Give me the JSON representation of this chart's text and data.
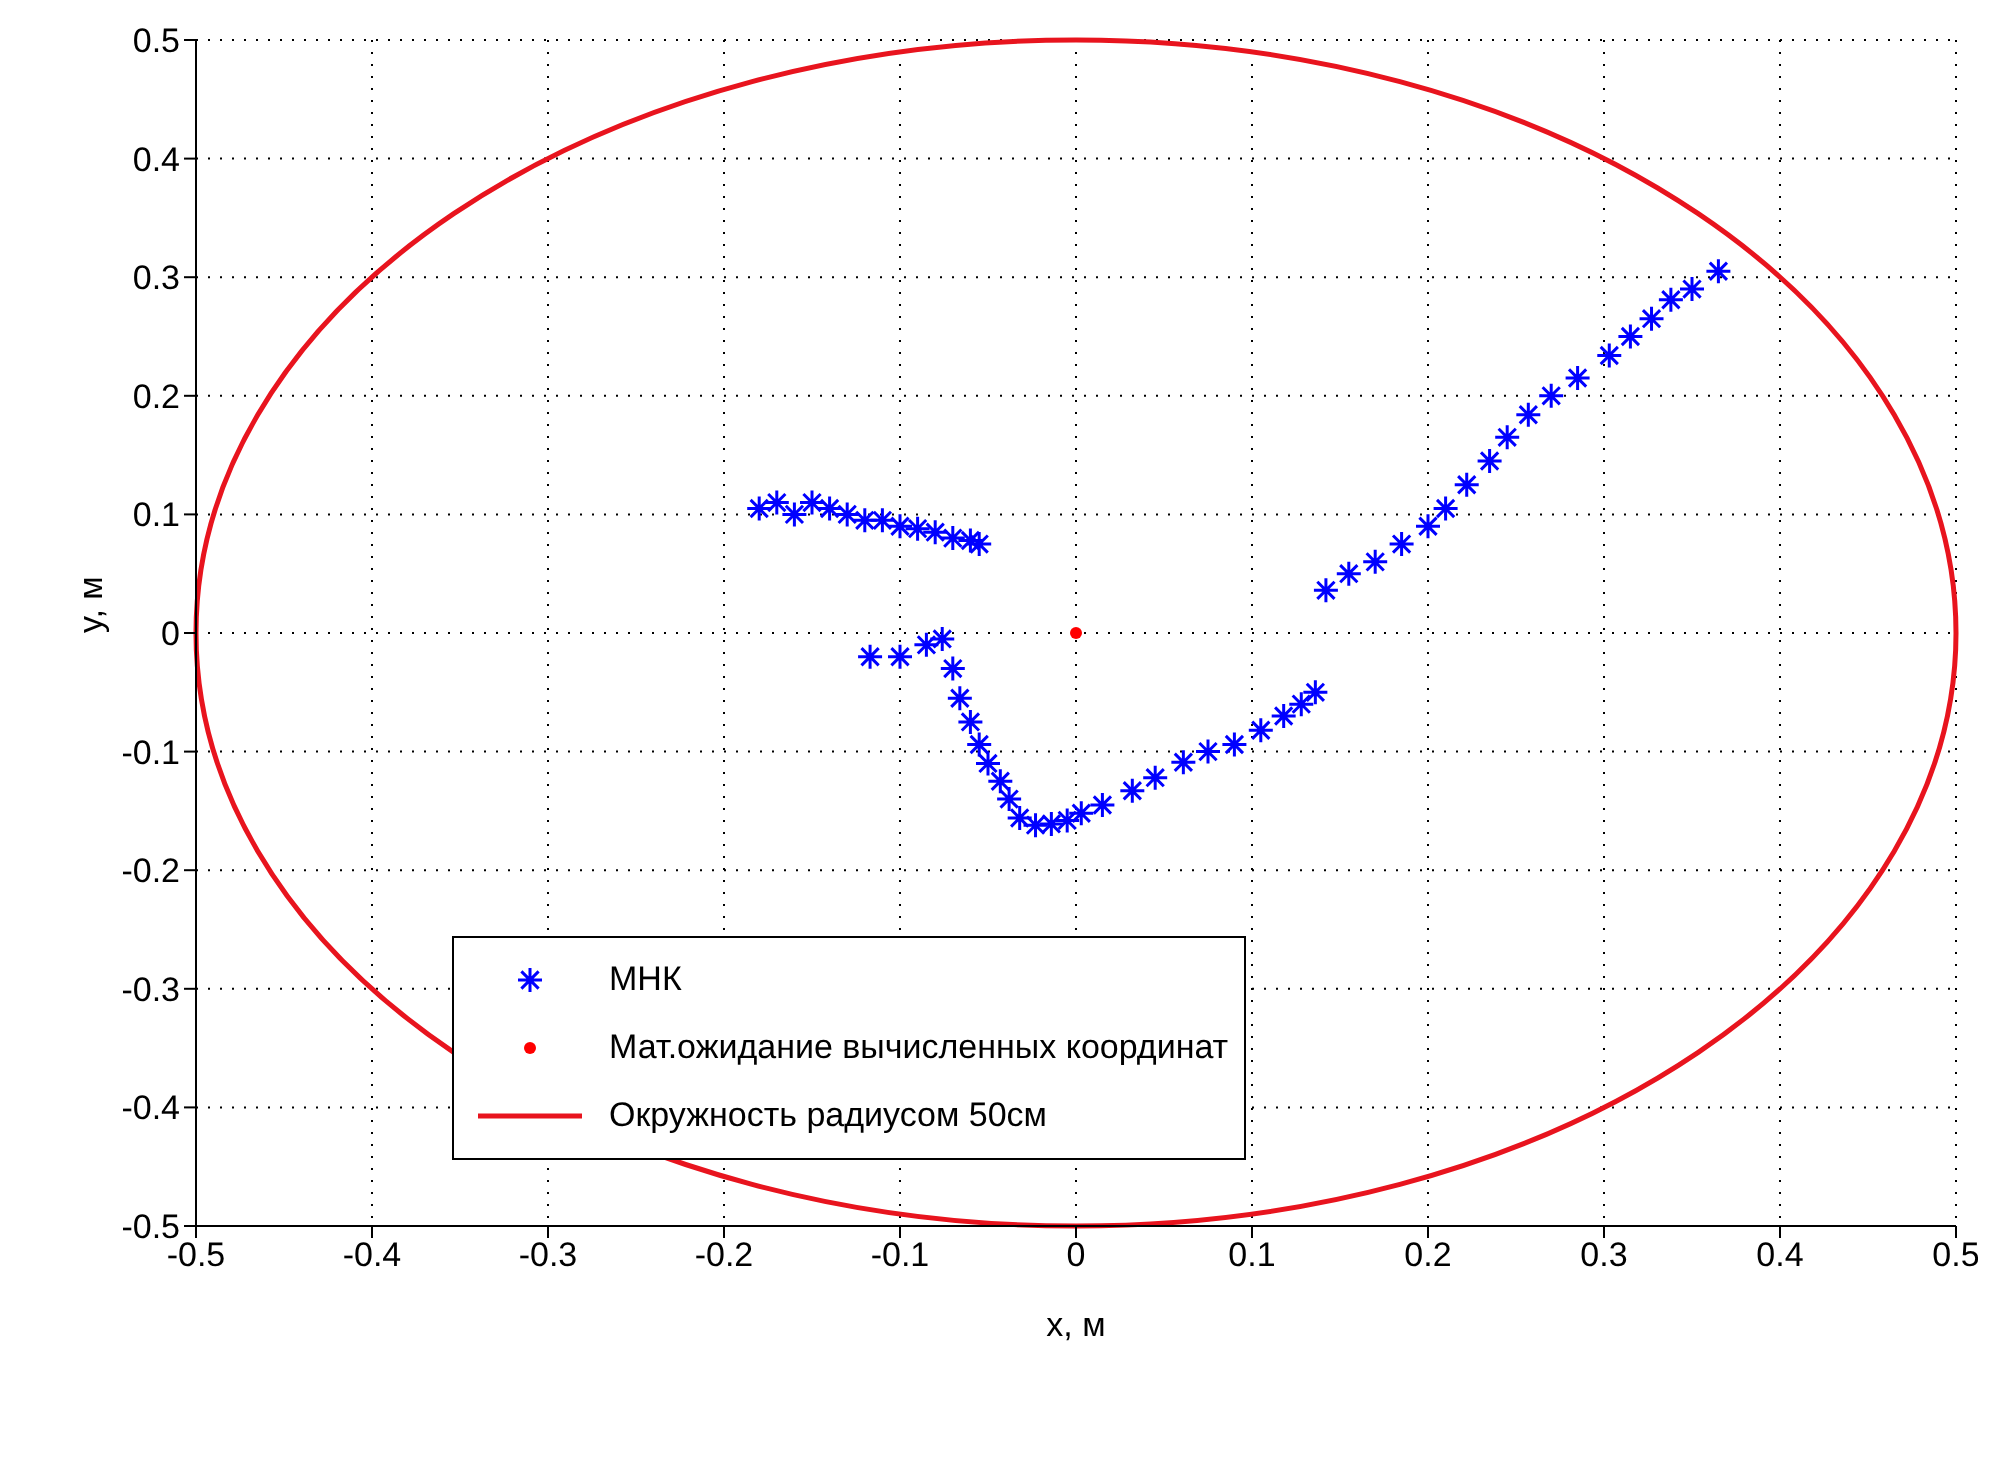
{
  "chart_data": {
    "type": "scatter",
    "xlabel": "x, м",
    "ylabel": "y, м",
    "xlim": [
      -0.5,
      0.5
    ],
    "ylim": [
      -0.5,
      0.5
    ],
    "xticks": [
      -0.5,
      -0.4,
      -0.3,
      -0.2,
      -0.1,
      0,
      0.1,
      0.2,
      0.3,
      0.4,
      0.5
    ],
    "yticks": [
      -0.5,
      -0.4,
      -0.3,
      -0.2,
      -0.1,
      0,
      0.1,
      0.2,
      0.3,
      0.4,
      0.5
    ],
    "grid": true,
    "legend": "bottom",
    "annotations": [
      "Окружность радиусом 50см"
    ],
    "series": [
      {
        "name": "МНК",
        "marker": "cross",
        "color": "#0000ff",
        "x": [
          -0.18,
          -0.17,
          -0.16,
          -0.15,
          -0.14,
          -0.13,
          -0.12,
          -0.11,
          -0.1,
          -0.09,
          -0.08,
          -0.07,
          -0.06,
          -0.055,
          -0.117,
          -0.1,
          -0.085,
          -0.076,
          -0.07,
          -0.066,
          -0.06,
          -0.055,
          -0.05,
          -0.043,
          -0.038,
          -0.032,
          -0.023,
          -0.014,
          -0.005,
          0.003,
          0.015,
          0.032,
          0.045,
          0.061,
          0.075,
          0.09,
          0.105,
          0.118,
          0.128,
          0.136,
          0.142,
          0.155,
          0.17,
          0.185,
          0.2,
          0.21,
          0.222,
          0.235,
          0.245,
          0.257,
          0.27,
          0.285,
          0.303,
          0.315,
          0.327,
          0.338,
          0.35,
          0.365
        ],
        "values": [
          0.105,
          0.11,
          0.1,
          0.11,
          0.105,
          0.1,
          0.095,
          0.095,
          0.09,
          0.088,
          0.085,
          0.08,
          0.078,
          0.075,
          -0.02,
          -0.02,
          -0.01,
          -0.005,
          -0.03,
          -0.055,
          -0.075,
          -0.094,
          -0.11,
          -0.125,
          -0.14,
          -0.156,
          -0.162,
          -0.161,
          -0.158,
          -0.152,
          -0.145,
          -0.133,
          -0.122,
          -0.109,
          -0.1,
          -0.094,
          -0.082,
          -0.07,
          -0.06,
          -0.05,
          0.036,
          0.05,
          0.06,
          0.075,
          0.09,
          0.105,
          0.125,
          0.145,
          0.165,
          0.184,
          0.2,
          0.215,
          0.234,
          0.25,
          0.265,
          0.281,
          0.29,
          0.305
        ]
      },
      {
        "name": "Мат.ожидание вычисленных координат",
        "marker": "circle",
        "color": "#ff0000",
        "x": [
          0
        ],
        "values": [
          0
        ]
      }
    ]
  }
}
